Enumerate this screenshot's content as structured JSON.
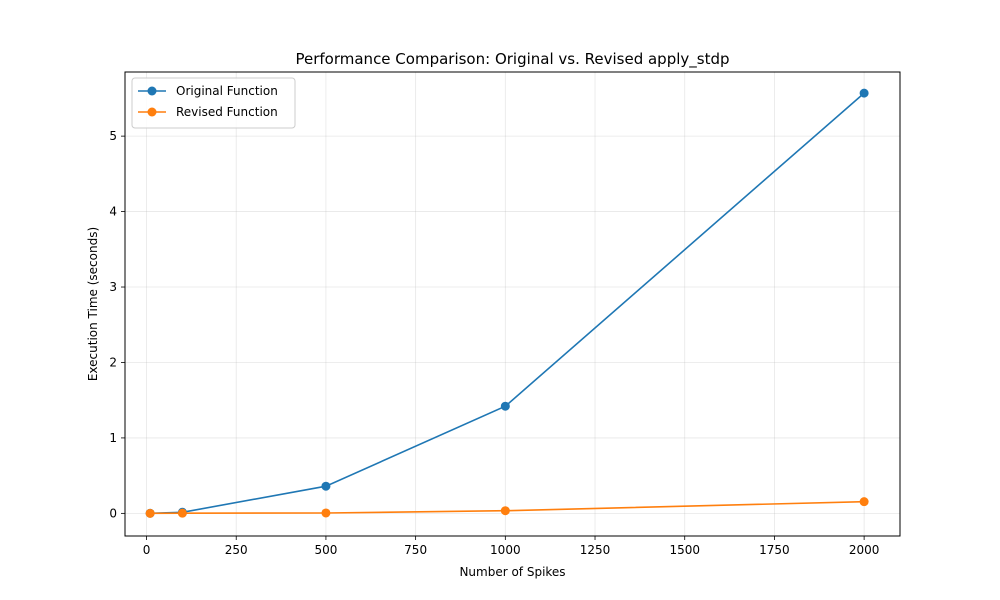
{
  "chart_data": {
    "type": "line",
    "title": "Performance Comparison: Original vs. Revised apply_stdp",
    "xlabel": "Number of Spikes",
    "ylabel": "Execution Time (seconds)",
    "x": [
      10,
      100,
      500,
      1000,
      2000
    ],
    "xlim": [
      -60,
      2100
    ],
    "ylim": [
      -0.3,
      5.85
    ],
    "xticks": [
      0,
      250,
      500,
      750,
      1000,
      1250,
      1500,
      1750,
      2000
    ],
    "yticks": [
      0,
      1,
      2,
      3,
      4,
      5
    ],
    "grid": true,
    "legend_position": "top-left",
    "series": [
      {
        "name": "Original Function",
        "color": "#1f77b4",
        "values": [
          0.001,
          0.014,
          0.36,
          1.42,
          5.57
        ]
      },
      {
        "name": "Revised Function",
        "color": "#ff7f0e",
        "values": [
          0.0005,
          0.003,
          0.005,
          0.035,
          0.155
        ]
      }
    ]
  }
}
